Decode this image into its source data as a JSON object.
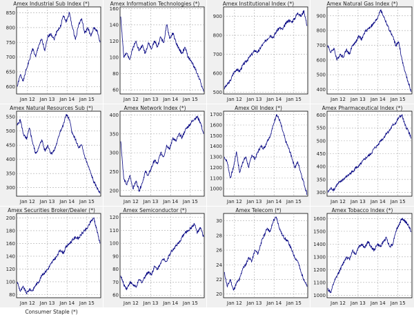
{
  "colors": {
    "series": "#000080",
    "grid": "#a8a8a8",
    "panel_bg": "#f0f0f0",
    "plot_bg": "#ffffff"
  },
  "footer": {
    "label": "Consumer Staple (*)"
  },
  "chart_data": [
    {
      "type": "line",
      "title": "Amex Industrial Sub Index (*)",
      "x_ticks": [
        "Jan 12",
        "Jan 13",
        "Jan 14",
        "Jan 15"
      ],
      "y_ticks": [
        600,
        650,
        700,
        750,
        800,
        850
      ],
      "ylim": [
        575,
        870
      ],
      "grid": true,
      "series": [
        {
          "values": [
            600,
            640,
            620,
            660,
            690,
            730,
            700,
            740,
            760,
            720,
            770,
            780,
            760,
            790,
            800,
            840,
            820,
            850,
            800,
            760,
            810,
            830,
            780,
            800,
            770,
            800,
            790,
            750
          ]
        }
      ]
    },
    {
      "type": "line",
      "title": "Amex Information Technologies (*)",
      "x_ticks": [
        "Jan 12",
        "Jan 13",
        "Jan 14",
        "Jan 15"
      ],
      "y_ticks": [
        60,
        80,
        100,
        120,
        140,
        160
      ],
      "ylim": [
        55,
        162
      ],
      "grid": true,
      "series": [
        {
          "values": [
            150,
            100,
            105,
            98,
            112,
            120,
            108,
            115,
            105,
            118,
            110,
            120,
            113,
            125,
            118,
            140,
            123,
            130,
            118,
            110,
            105,
            112,
            100,
            95,
            88,
            80,
            70,
            58
          ]
        }
      ]
    },
    {
      "type": "line",
      "title": "Amex Institutional Index (*)",
      "x_ticks": [
        "Jan 12",
        "Jan 13",
        "Jan 14",
        "Jan 15"
      ],
      "y_ticks": [
        500,
        600,
        700,
        800,
        900
      ],
      "ylim": [
        490,
        950
      ],
      "grid": true,
      "series": [
        {
          "values": [
            520,
            540,
            560,
            600,
            620,
            610,
            640,
            660,
            680,
            700,
            720,
            710,
            740,
            760,
            780,
            800,
            790,
            820,
            840,
            830,
            860,
            880,
            870,
            890,
            920,
            900,
            930,
            850
          ]
        }
      ]
    },
    {
      "type": "line",
      "title": "Amex Natural Gas Index (*)",
      "x_ticks": [
        "Jan 12",
        "Jan 13",
        "Jan 14",
        "Jan 15"
      ],
      "y_ticks": [
        400,
        500,
        600,
        700,
        800,
        900
      ],
      "ylim": [
        370,
        960
      ],
      "grid": true,
      "series": [
        {
          "values": [
            700,
            650,
            680,
            600,
            640,
            620,
            670,
            640,
            700,
            720,
            760,
            740,
            790,
            810,
            830,
            850,
            880,
            940,
            900,
            850,
            800,
            760,
            700,
            720,
            600,
            520,
            450,
            385
          ]
        }
      ]
    },
    {
      "type": "line",
      "title": "Amex Natural Resources Sub (*)",
      "x_ticks": [
        "Jan 12",
        "Jan 13",
        "Jan 14",
        "Jan 15"
      ],
      "y_ticks": [
        300,
        350,
        400,
        450,
        500,
        550
      ],
      "ylim": [
        270,
        570
      ],
      "grid": true,
      "series": [
        {
          "values": [
            520,
            540,
            490,
            470,
            510,
            460,
            420,
            440,
            470,
            430,
            450,
            420,
            430,
            460,
            500,
            520,
            560,
            540,
            490,
            470,
            440,
            450,
            410,
            380,
            350,
            320,
            300,
            280
          ]
        }
      ]
    },
    {
      "type": "line",
      "title": "Amex Network Index (*)",
      "x_ticks": [
        "Jan 12",
        "Jan 13",
        "Jan 14",
        "Jan 15"
      ],
      "y_ticks": [
        200,
        250,
        300,
        350,
        400
      ],
      "ylim": [
        185,
        410
      ],
      "grid": true,
      "series": [
        {
          "values": [
            330,
            230,
            215,
            240,
            205,
            225,
            200,
            220,
            250,
            240,
            260,
            280,
            270,
            300,
            290,
            320,
            310,
            340,
            330,
            350,
            340,
            360,
            370,
            380,
            390,
            395,
            380,
            350
          ]
        }
      ]
    },
    {
      "type": "line",
      "title": "Amex Oil Index (*)",
      "x_ticks": [
        "Jan 12",
        "Jan 13",
        "Jan 14",
        "Jan 15"
      ],
      "y_ticks": [
        1000,
        1100,
        1200,
        1300,
        1400,
        1500,
        1600,
        1700
      ],
      "ylim": [
        930,
        1730
      ],
      "grid": true,
      "series": [
        {
          "values": [
            1300,
            1250,
            1100,
            1200,
            1350,
            1150,
            1250,
            1300,
            1200,
            1320,
            1280,
            1350,
            1400,
            1380,
            1450,
            1500,
            1600,
            1700,
            1650,
            1550,
            1450,
            1380,
            1300,
            1200,
            1250,
            1150,
            1050,
            950
          ]
        }
      ]
    },
    {
      "type": "line",
      "title": "Amex Pharmaceutical Index (*)",
      "x_ticks": [
        "Jan 12",
        "Jan 13",
        "Jan 14",
        "Jan 15"
      ],
      "y_ticks": [
        300,
        350,
        400,
        450,
        500,
        550,
        600
      ],
      "ylim": [
        285,
        615
      ],
      "grid": true,
      "series": [
        {
          "values": [
            300,
            315,
            310,
            330,
            340,
            350,
            360,
            370,
            380,
            395,
            400,
            415,
            430,
            440,
            450,
            470,
            480,
            500,
            510,
            530,
            540,
            560,
            570,
            590,
            600,
            560,
            540,
            510
          ]
        }
      ]
    },
    {
      "type": "line",
      "title": "Amex Securities Broker/Dealer (*)",
      "x_ticks": [
        "Jan 12",
        "Jan 13",
        "Jan 14",
        "Jan 15"
      ],
      "y_ticks": [
        80,
        100,
        120,
        140,
        160,
        180,
        200
      ],
      "ylim": [
        75,
        207
      ],
      "grid": true,
      "series": [
        {
          "values": [
            100,
            85,
            92,
            82,
            88,
            86,
            95,
            100,
            110,
            115,
            120,
            128,
            135,
            140,
            150,
            145,
            155,
            160,
            165,
            170,
            168,
            175,
            180,
            185,
            195,
            200,
            180,
            160
          ]
        }
      ]
    },
    {
      "type": "line",
      "title": "Amex Semiconductor (*)",
      "x_ticks": [
        "Jan 12",
        "Jan 13",
        "Jan 14",
        "Jan 15"
      ],
      "y_ticks": [
        60,
        70,
        80,
        90,
        100,
        110,
        120
      ],
      "ylim": [
        58,
        123
      ],
      "grid": true,
      "series": [
        {
          "values": [
            75,
            68,
            65,
            70,
            68,
            66,
            72,
            70,
            75,
            78,
            76,
            82,
            80,
            85,
            88,
            86,
            92,
            95,
            98,
            100,
            105,
            108,
            110,
            112,
            115,
            108,
            112,
            105
          ]
        }
      ]
    },
    {
      "type": "line",
      "title": "Amex Telecom (*)",
      "x_ticks": [
        "Jan 12",
        "Jan 13",
        "Jan 14",
        "Jan 15"
      ],
      "y_ticks": [
        20,
        22,
        24,
        26,
        28,
        30
      ],
      "ylim": [
        19.5,
        31
      ],
      "grid": true,
      "series": [
        {
          "values": [
            23,
            21,
            22,
            20.5,
            21.5,
            22,
            23.5,
            24,
            25,
            24.5,
            26,
            25.5,
            27,
            28,
            29,
            28.5,
            30,
            30.5,
            29,
            28,
            27.5,
            27,
            26,
            25,
            24.5,
            23,
            22,
            21
          ]
        }
      ]
    },
    {
      "type": "line",
      "title": "Amex Tobacco Index (*)",
      "x_ticks": [
        "Jan 12",
        "Jan 13",
        "Jan 14",
        "Jan 15"
      ],
      "y_ticks": [
        1000,
        1100,
        1200,
        1300,
        1400,
        1500,
        1600
      ],
      "ylim": [
        980,
        1640
      ],
      "grid": true,
      "series": [
        {
          "values": [
            1050,
            1020,
            1100,
            1150,
            1200,
            1250,
            1300,
            1280,
            1350,
            1320,
            1380,
            1400,
            1370,
            1420,
            1380,
            1350,
            1400,
            1380,
            1420,
            1450,
            1380,
            1400,
            1500,
            1550,
            1600,
            1580,
            1550,
            1500
          ]
        }
      ]
    }
  ]
}
